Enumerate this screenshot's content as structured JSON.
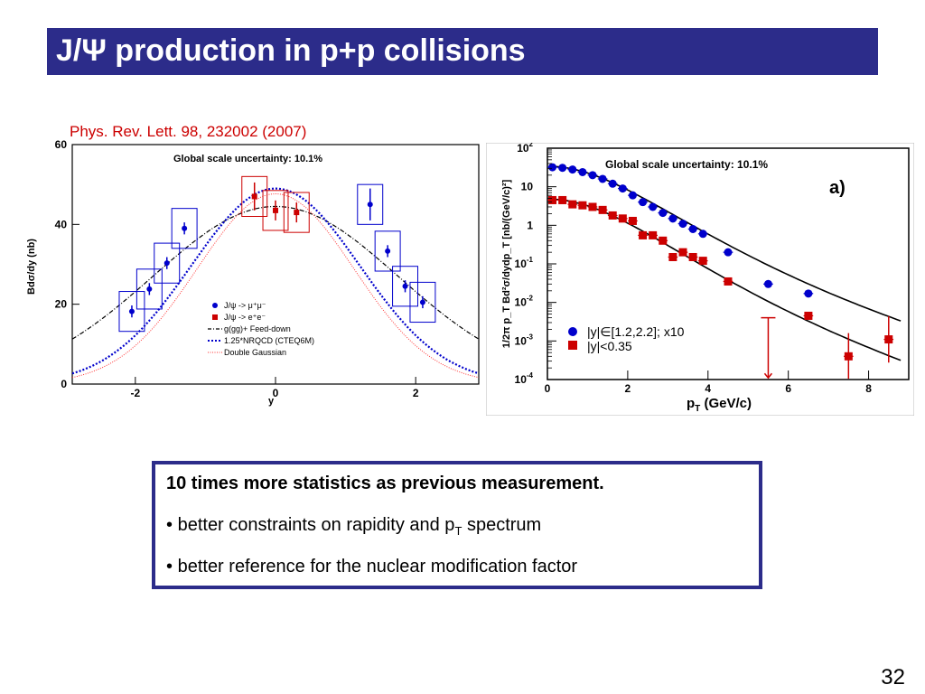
{
  "slide": {
    "title": "J/Ψ production in p+p collisions",
    "reference": "Phys. Rev. Lett. 98, 232002 (2007)",
    "page_number": "32",
    "colors": {
      "title_bar": "#2c2c8a",
      "reference": "#cc0000",
      "box_border": "#2c2c8a"
    }
  },
  "summary": {
    "headline": "10 times more statistics as previous measurement.",
    "bullet1_text": "better constraints on rapidity and p",
    "bullet1_sub": "T",
    "bullet1_tail": " spectrum",
    "bullet2": "better reference for the nuclear modification factor",
    "bullet_marker": "•"
  },
  "chart_data": [
    {
      "type": "scatter",
      "annotation": "Global scale uncertainty: 10.1%",
      "xlabel": "y",
      "ylabel": "Bdσ/dy (nb)",
      "xlim": [
        -2.9,
        2.9
      ],
      "ylim": [
        0,
        60
      ],
      "xticks": [
        -2,
        0,
        2
      ],
      "yticks": [
        0,
        20,
        40,
        60
      ],
      "series": [
        {
          "name": "J/ψ -> μ⁺μ⁻",
          "color": "#0000cc",
          "points": [
            {
              "x": -2.05,
              "y": 18.2,
              "err": 1.5
            },
            {
              "x": -1.8,
              "y": 23.8,
              "err": 1.5
            },
            {
              "x": -1.55,
              "y": 30.3,
              "err": 1.5
            },
            {
              "x": -1.3,
              "y": 39.0,
              "err": 1.5
            },
            {
              "x": 1.35,
              "y": 45.0,
              "err": 4.0
            },
            {
              "x": 1.6,
              "y": 33.3,
              "err": 1.5
            },
            {
              "x": 1.85,
              "y": 24.5,
              "err": 1.5
            },
            {
              "x": 2.1,
              "y": 20.5,
              "err": 1.5
            }
          ]
        },
        {
          "name": "J/ψ -> e⁺e⁻",
          "color": "#cc0000",
          "points": [
            {
              "x": -0.3,
              "y": 47.0,
              "err": 3.5
            },
            {
              "x": 0.0,
              "y": 43.5,
              "err": 2.5
            },
            {
              "x": 0.3,
              "y": 43.0,
              "err": 2.5
            }
          ]
        },
        {
          "name": "g(gg)+ Feed-down",
          "color": "#000000",
          "style": "dashdot"
        },
        {
          "name": "1.25*NRQCD (CTEQ6M)",
          "color": "#0000cc",
          "style": "dotted"
        },
        {
          "name": "Double Gaussian",
          "color": "#ff3333",
          "style": "dotted-thin"
        }
      ]
    },
    {
      "type": "scatter",
      "annotation": "Global scale uncertainty: 10.1%",
      "panel_label": "a)",
      "xlabel": "p_T (GeV/c)",
      "xlabel_main": "p",
      "xlabel_sub": "T",
      "xlabel_tail": " (GeV/c)",
      "ylabel": "1/2π p_T Bd²σ/dydp_T [nb/(GeV/c)²]",
      "xlim": [
        0,
        9
      ],
      "ylim": [
        0.0001,
        100
      ],
      "log_y": true,
      "xticks": [
        0,
        2,
        4,
        6,
        8
      ],
      "yticks": [
        {
          "value": 0.0001,
          "base": "10",
          "exp": "-4"
        },
        {
          "value": 0.001,
          "base": "10",
          "exp": "-3"
        },
        {
          "value": 0.01,
          "base": "10",
          "exp": "-2"
        },
        {
          "value": 0.1,
          "base": "10",
          "exp": "-1"
        },
        {
          "value": 1,
          "base": "1",
          "exp": ""
        },
        {
          "value": 10,
          "base": "10",
          "exp": ""
        },
        {
          "value": 100,
          "base": "10",
          "exp": "2"
        }
      ],
      "series": [
        {
          "name": "|y|∈[1.2,2.2]; x10",
          "color": "#0000cc",
          "marker": "circle",
          "points": [
            {
              "x": 0.125,
              "y": 32
            },
            {
              "x": 0.375,
              "y": 31
            },
            {
              "x": 0.625,
              "y": 28
            },
            {
              "x": 0.875,
              "y": 24
            },
            {
              "x": 1.125,
              "y": 20
            },
            {
              "x": 1.375,
              "y": 16
            },
            {
              "x": 1.625,
              "y": 12
            },
            {
              "x": 1.875,
              "y": 9
            },
            {
              "x": 2.125,
              "y": 6
            },
            {
              "x": 2.375,
              "y": 4
            },
            {
              "x": 2.625,
              "y": 3
            },
            {
              "x": 2.875,
              "y": 2.1
            },
            {
              "x": 3.125,
              "y": 1.5
            },
            {
              "x": 3.375,
              "y": 1.1
            },
            {
              "x": 3.625,
              "y": 0.8
            },
            {
              "x": 3.875,
              "y": 0.6
            },
            {
              "x": 4.5,
              "y": 0.2
            },
            {
              "x": 5.5,
              "y": 0.03
            },
            {
              "x": 6.5,
              "y": 0.017
            }
          ]
        },
        {
          "name": "|y|<0.35",
          "color": "#cc0000",
          "marker": "square",
          "points": [
            {
              "x": 0.125,
              "y": 4.5
            },
            {
              "x": 0.375,
              "y": 4.5
            },
            {
              "x": 0.625,
              "y": 3.5
            },
            {
              "x": 0.875,
              "y": 3.3
            },
            {
              "x": 1.125,
              "y": 3.0
            },
            {
              "x": 1.375,
              "y": 2.5
            },
            {
              "x": 1.625,
              "y": 1.8
            },
            {
              "x": 1.875,
              "y": 1.5
            },
            {
              "x": 2.125,
              "y": 1.3
            },
            {
              "x": 2.375,
              "y": 0.55
            },
            {
              "x": 2.625,
              "y": 0.55
            },
            {
              "x": 2.875,
              "y": 0.4
            },
            {
              "x": 3.125,
              "y": 0.15
            },
            {
              "x": 3.375,
              "y": 0.2
            },
            {
              "x": 3.625,
              "y": 0.15
            },
            {
              "x": 3.875,
              "y": 0.12
            },
            {
              "x": 4.5,
              "y": 0.035
            },
            {
              "x": 6.5,
              "y": 0.0045
            },
            {
              "x": 7.5,
              "y": 0.0004
            },
            {
              "x": 8.5,
              "y": 0.0011
            }
          ],
          "upper_limit": {
            "x": 5.5,
            "y": 0.004
          }
        }
      ]
    }
  ]
}
